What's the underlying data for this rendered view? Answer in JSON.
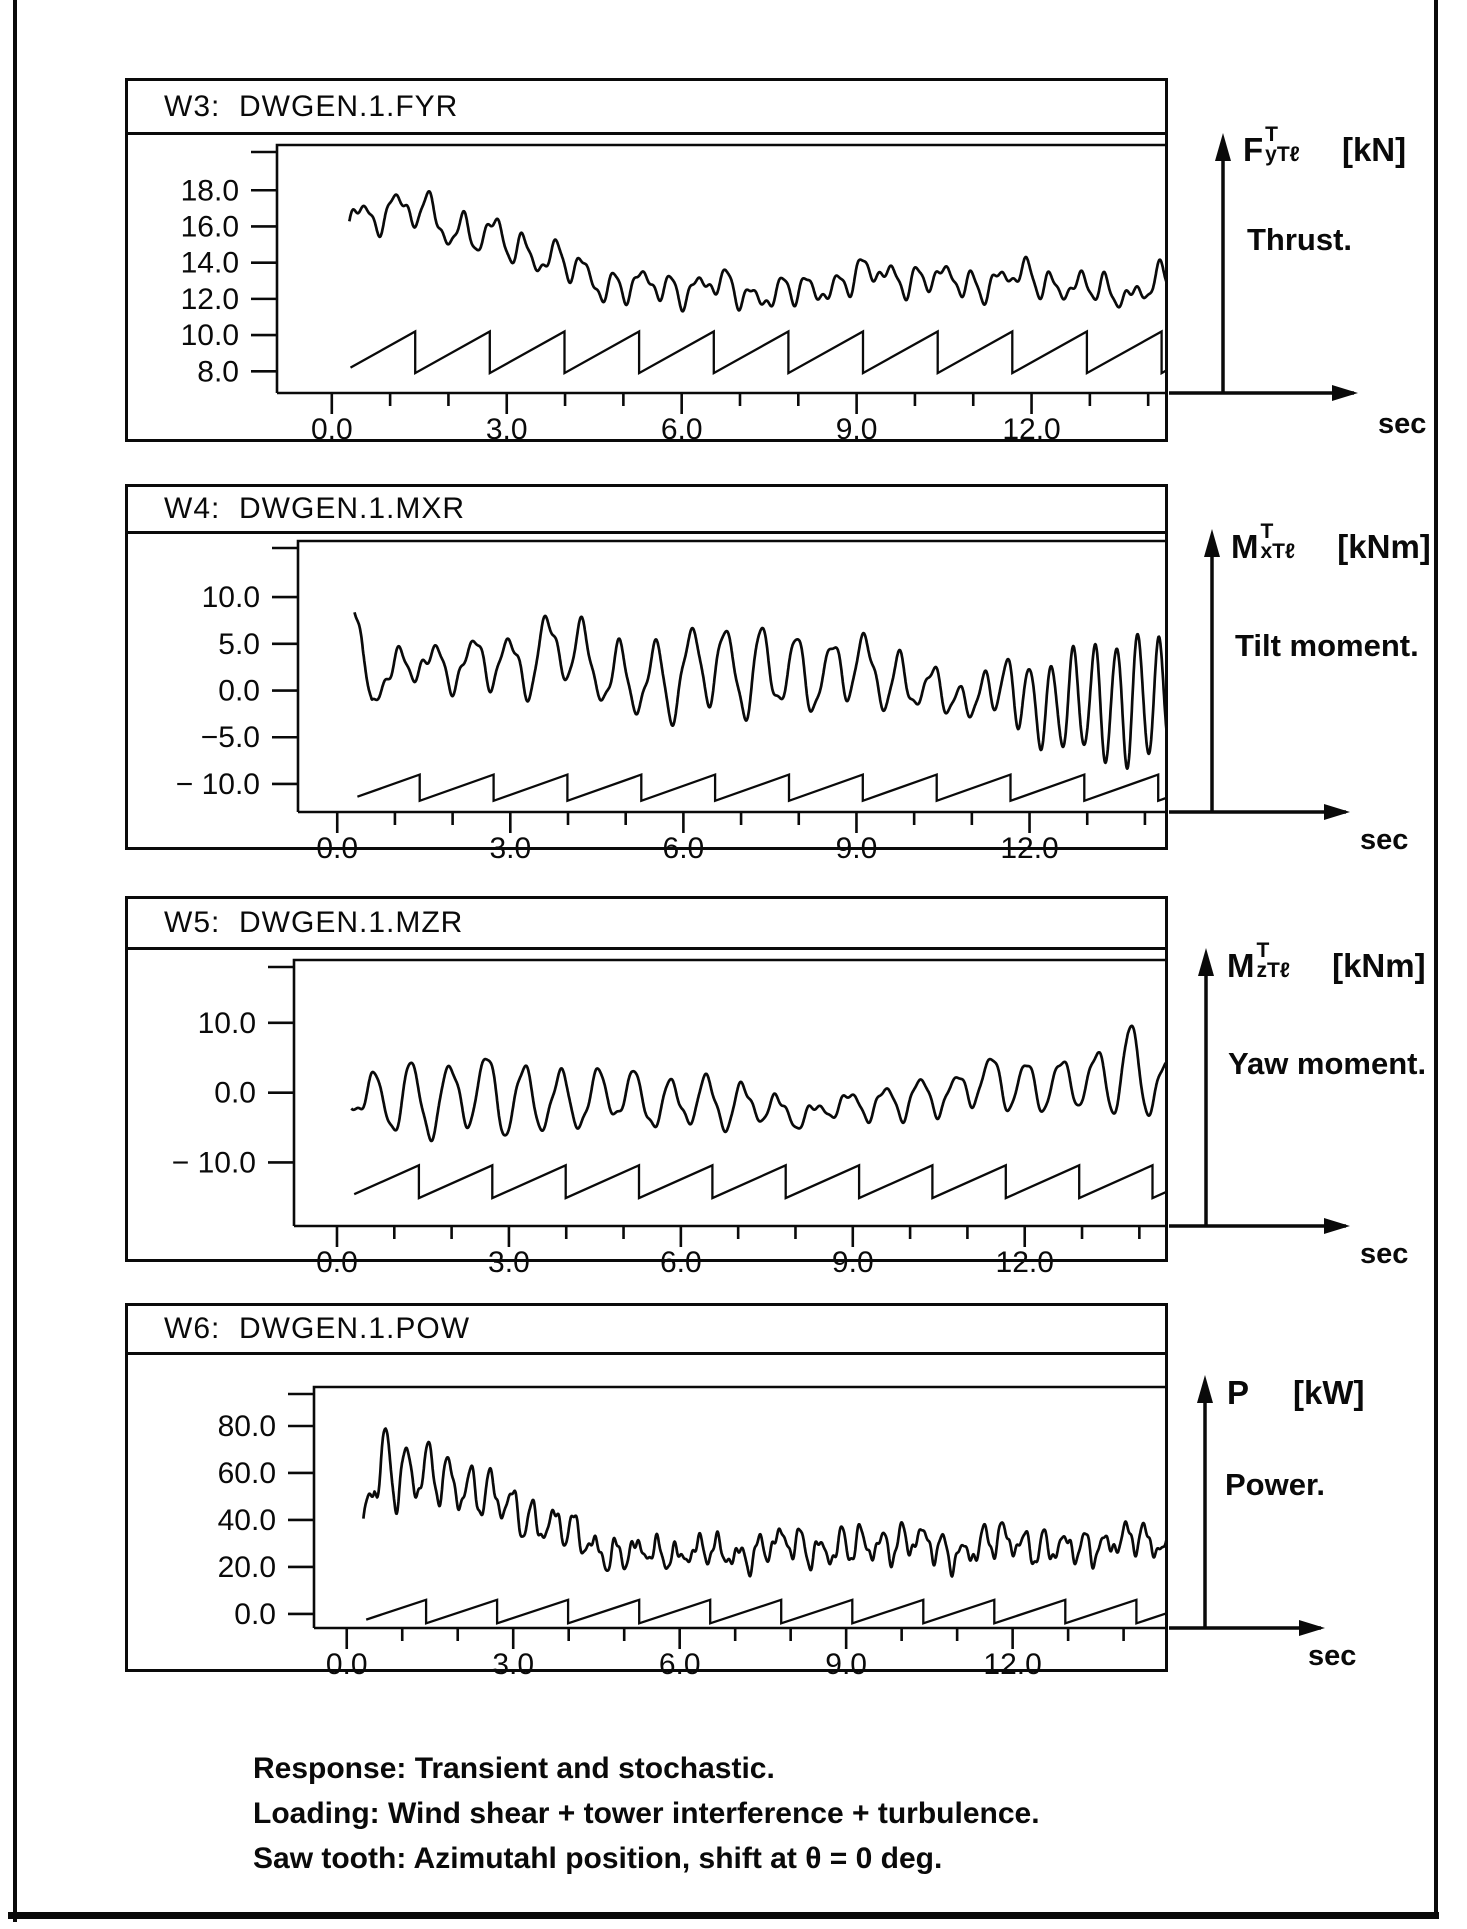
{
  "captions": {
    "lines": [
      "Response: Transient and stochastic.",
      "Loading: Wind shear + tower interference + turbulence.",
      "Saw tooth: Azimutahl position, shift at θ = 0 deg."
    ]
  },
  "chart_data": [
    {
      "id": "W3",
      "type": "line",
      "title": "W3:  DWGEN.1.FYR",
      "x_unit": "sec",
      "xlim": [
        -0.94,
        14.34
      ],
      "ylim": [
        6.8,
        20.5
      ],
      "x_major_ticks": [
        0,
        3,
        6,
        9,
        12
      ],
      "x_major_labels": [
        "0.0",
        "3.0",
        "6.0",
        "9.0",
        "12.0"
      ],
      "x_minor_step": 1,
      "y_ticks": [
        [
          18,
          "18.0"
        ],
        [
          16,
          "16.0"
        ],
        [
          14,
          "14.0"
        ],
        [
          12,
          "12.0"
        ],
        [
          10,
          "10.0"
        ],
        [
          8,
          "8.0"
        ]
      ],
      "axis_label": {
        "base": "F",
        "sup": "T",
        "sub": "yTℓ",
        "unit": "[kN]",
        "desc": "Thrust."
      },
      "sec_label": "sec",
      "signal": {
        "t_start": 0.3,
        "t_end": 14.34,
        "phase0": -0.5,
        "base": [
          [
            0.3,
            15.8
          ],
          [
            0.5,
            16.3
          ],
          [
            0.8,
            16.8
          ],
          [
            1.2,
            17.0
          ],
          [
            1.7,
            16.6
          ],
          [
            2.2,
            16.1
          ],
          [
            2.7,
            15.4
          ],
          [
            3.2,
            14.7
          ],
          [
            3.7,
            14.1
          ],
          [
            4.2,
            13.5
          ],
          [
            4.7,
            13.1
          ],
          [
            5.2,
            12.8
          ],
          [
            6,
            12.5
          ],
          [
            7,
            12.4
          ],
          [
            8,
            12.5
          ],
          [
            8.8,
            12.9
          ],
          [
            9.6,
            13.2
          ],
          [
            10.4,
            13.2
          ],
          [
            11.2,
            13.0
          ],
          [
            12,
            12.9
          ],
          [
            12.6,
            12.7
          ],
          [
            13.2,
            12.5
          ],
          [
            13.8,
            12.7
          ],
          [
            14.34,
            12.9
          ]
        ],
        "amp": [
          [
            0.3,
            0.5
          ],
          [
            0.8,
            0.8
          ],
          [
            1.5,
            0.9
          ],
          [
            2.5,
            0.9
          ],
          [
            3.5,
            0.8
          ],
          [
            4.5,
            0.75
          ],
          [
            5.5,
            0.65
          ],
          [
            7,
            0.6
          ],
          [
            9,
            0.6
          ],
          [
            11,
            0.6
          ],
          [
            12.5,
            0.65
          ],
          [
            13.5,
            0.55
          ],
          [
            14.34,
            0.6
          ]
        ],
        "freq": [
          [
            0.3,
            1.6
          ],
          [
            3,
            1.9
          ],
          [
            6,
            2.1
          ],
          [
            14.34,
            2.2
          ]
        ],
        "noise": [
          [
            0.78,
            0.5,
            0.35
          ],
          [
            3.1,
            1.2,
            0.28
          ],
          [
            5.2,
            2.8,
            0.18
          ],
          [
            0.35,
            0.2,
            0.22
          ]
        ]
      },
      "sawtooth": {
        "min": 7.9,
        "max": 10.2,
        "period": 1.28,
        "first_drop": 1.43,
        "t_start": 0.32,
        "t_end": 14.34
      }
    },
    {
      "id": "W4",
      "type": "line",
      "title": "W4:  DWGEN.1.MXR",
      "x_unit": "sec",
      "xlim": [
        -0.68,
        14.4
      ],
      "ylim": [
        -13,
        16
      ],
      "x_major_ticks": [
        0,
        3,
        6,
        9,
        12
      ],
      "x_major_labels": [
        "0.0",
        "3.0",
        "6.0",
        "9.0",
        "12.0"
      ],
      "x_minor_step": 1,
      "y_ticks": [
        [
          10,
          "10.0"
        ],
        [
          5,
          "5.0"
        ],
        [
          0,
          "0.0"
        ],
        [
          -5,
          "−5.0"
        ],
        [
          -10,
          "− 10.0"
        ]
      ],
      "axis_label": {
        "base": "M",
        "sup": "T",
        "sub": "xTℓ",
        "unit": "[kNm]",
        "desc": "Tilt moment."
      },
      "sec_label": "sec",
      "signal": {
        "t_start": 0.3,
        "t_end": 14.4,
        "phase0": 0.8,
        "base": [
          [
            0.3,
            9.3
          ],
          [
            0.45,
            4.0
          ],
          [
            0.6,
            0.8
          ],
          [
            0.9,
            2.2
          ],
          [
            1.5,
            2.4
          ],
          [
            2.2,
            2.6
          ],
          [
            3.0,
            3.5
          ],
          [
            3.8,
            4.2
          ],
          [
            4.3,
            3.2
          ],
          [
            5.0,
            0.8
          ],
          [
            5.5,
            1.5
          ],
          [
            6.0,
            2.2
          ],
          [
            6.6,
            2.0
          ],
          [
            7.2,
            2.2
          ],
          [
            7.6,
            2.4
          ],
          [
            8.2,
            2.0
          ],
          [
            9.0,
            1.8
          ],
          [
            9.6,
            1.6
          ],
          [
            10.2,
            0.5
          ],
          [
            10.8,
            -0.8
          ],
          [
            11.2,
            -0.6
          ],
          [
            11.8,
            -0.5
          ],
          [
            12.5,
            -1.0
          ],
          [
            13.2,
            -1.2
          ],
          [
            14.0,
            -1.5
          ],
          [
            14.4,
            -1.0
          ]
        ],
        "amp": [
          [
            0.3,
            0.05
          ],
          [
            0.6,
            0.8
          ],
          [
            1.0,
            1.6
          ],
          [
            2.0,
            2.0
          ],
          [
            2.6,
            2.6
          ],
          [
            3.3,
            3.2
          ],
          [
            4.0,
            3.6
          ],
          [
            4.7,
            3.0
          ],
          [
            5.2,
            3.8
          ],
          [
            6.0,
            4.2
          ],
          [
            6.6,
            4.0
          ],
          [
            7.5,
            4.6
          ],
          [
            8.0,
            3.4
          ],
          [
            9.0,
            3.2
          ],
          [
            9.7,
            3.0
          ],
          [
            10.3,
            2.0
          ],
          [
            10.8,
            1.0
          ],
          [
            11.3,
            2.5
          ],
          [
            11.8,
            4.2
          ],
          [
            12.5,
            4.8
          ],
          [
            13.2,
            5.4
          ],
          [
            13.9,
            6.4
          ],
          [
            14.4,
            5.0
          ]
        ],
        "freq": [
          [
            0.3,
            1.5
          ],
          [
            5,
            1.6
          ],
          [
            10,
            1.7
          ],
          [
            10.8,
            2.2
          ],
          [
            11.3,
            2.6
          ],
          [
            14.4,
            2.7
          ]
        ],
        "noise": [
          [
            0.78,
            1.5,
            0.7
          ],
          [
            2.9,
            0.3,
            0.6
          ],
          [
            4.7,
            2.2,
            0.45
          ],
          [
            0.42,
            3.1,
            0.5
          ]
        ]
      },
      "sawtooth": {
        "min": -11.8,
        "max": -9.0,
        "period": 1.28,
        "first_drop": 1.43,
        "t_start": 0.35,
        "t_end": 14.4
      }
    },
    {
      "id": "W5",
      "type": "line",
      "title": "W5:  DWGEN.1.MZR",
      "x_unit": "sec",
      "xlim": [
        -0.75,
        14.5
      ],
      "ylim": [
        -19.1,
        19
      ],
      "x_major_ticks": [
        0,
        3,
        6,
        9,
        12
      ],
      "x_major_labels": [
        "0.0",
        "3.0",
        "6.0",
        "9.0",
        "12.0"
      ],
      "x_minor_step": 1,
      "y_ticks": [
        [
          10,
          "10.0"
        ],
        [
          0,
          "0.0"
        ],
        [
          -10,
          "− 10.0"
        ]
      ],
      "axis_label": {
        "base": "M",
        "sup": "T",
        "sub": "zTℓ",
        "unit": "[kNm]",
        "desc": "Yaw moment."
      },
      "sec_label": "sec",
      "signal": {
        "t_start": 0.25,
        "t_end": 14.5,
        "phase0": -2.2,
        "base": [
          [
            0.25,
            -1.5
          ],
          [
            0.5,
            -1.0
          ],
          [
            1,
            -1.0
          ],
          [
            2,
            -0.5
          ],
          [
            3,
            -0.5
          ],
          [
            4,
            -1.0
          ],
          [
            5,
            -0.8
          ],
          [
            6,
            -1.0
          ],
          [
            7,
            -2.0
          ],
          [
            8,
            -2.6
          ],
          [
            9,
            -2.3
          ],
          [
            10,
            -0.8
          ],
          [
            11,
            0.8
          ],
          [
            12,
            1.2
          ],
          [
            13,
            1.8
          ],
          [
            13.8,
            2.5
          ],
          [
            14.5,
            1.0
          ]
        ],
        "amp": [
          [
            0.25,
            1.0
          ],
          [
            0.6,
            3.5
          ],
          [
            1.2,
            5.5
          ],
          [
            2.0,
            4.5
          ],
          [
            2.8,
            5.5
          ],
          [
            3.5,
            4.5
          ],
          [
            4.2,
            3.8
          ],
          [
            5.0,
            3.5
          ],
          [
            6.0,
            3.2
          ],
          [
            6.8,
            3.6
          ],
          [
            7.5,
            2.0
          ],
          [
            8.0,
            1.5
          ],
          [
            8.7,
            1.2
          ],
          [
            9.3,
            2.0
          ],
          [
            10.0,
            2.8
          ],
          [
            10.7,
            2.2
          ],
          [
            11.3,
            3.2
          ],
          [
            12.0,
            3.8
          ],
          [
            12.7,
            3.0
          ],
          [
            13.3,
            4.0
          ],
          [
            13.8,
            7.0
          ],
          [
            14.1,
            5.0
          ],
          [
            14.5,
            4.0
          ]
        ],
        "freq": [
          [
            0.25,
            1.5
          ],
          [
            7,
            1.6
          ],
          [
            14.5,
            1.65
          ]
        ],
        "noise": [
          [
            0.78,
            2.5,
            0.45
          ],
          [
            3.3,
            1.1,
            0.45
          ],
          [
            0.45,
            0.8,
            0.5
          ],
          [
            5.1,
            2.0,
            0.3
          ]
        ]
      },
      "sawtooth": {
        "min": -15.1,
        "max": -10.4,
        "period": 1.28,
        "first_drop": 1.43,
        "t_start": 0.3,
        "t_end": 14.5
      }
    },
    {
      "id": "W6",
      "type": "line",
      "title": "W6:  DWGEN.1.POW",
      "x_unit": "sec",
      "xlim": [
        -0.59,
        14.8
      ],
      "ylim": [
        -6,
        96.6
      ],
      "x_major_ticks": [
        0,
        3,
        6,
        9,
        12
      ],
      "x_major_labels": [
        "0.0",
        "3.0",
        "6.0",
        "9.0",
        "12.0"
      ],
      "x_minor_step": 1,
      "y_ticks": [
        [
          80,
          "80.0"
        ],
        [
          60,
          "60.0"
        ],
        [
          40,
          "40.0"
        ],
        [
          20,
          "20.0"
        ],
        [
          0,
          "0.0"
        ]
      ],
      "axis_label": {
        "base": "P",
        "sup": "",
        "sub": "",
        "unit": "[kW]",
        "desc": "Power."
      },
      "sec_label": "sec",
      "signal": {
        "t_start": 0.3,
        "t_end": 14.8,
        "phase0": 1.2,
        "base": [
          [
            0.3,
            36
          ],
          [
            0.5,
            64
          ],
          [
            0.7,
            66
          ],
          [
            1.1,
            60
          ],
          [
            1.6,
            58
          ],
          [
            2.1,
            54
          ],
          [
            2.6,
            50
          ],
          [
            3.1,
            45
          ],
          [
            3.6,
            38
          ],
          [
            4.1,
            32
          ],
          [
            4.6,
            28
          ],
          [
            5.2,
            26
          ],
          [
            6,
            25
          ],
          [
            7,
            27
          ],
          [
            8,
            28
          ],
          [
            9,
            29
          ],
          [
            10,
            30
          ],
          [
            10.8,
            28
          ],
          [
            11.5,
            29
          ],
          [
            12.2,
            30
          ],
          [
            13,
            28
          ],
          [
            13.6,
            30
          ],
          [
            14.8,
            30
          ]
        ],
        "amp": [
          [
            0.3,
            2
          ],
          [
            0.55,
            18
          ],
          [
            0.8,
            14
          ],
          [
            1.2,
            12
          ],
          [
            1.8,
            10
          ],
          [
            2.4,
            9
          ],
          [
            3.0,
            8
          ],
          [
            3.6,
            7
          ],
          [
            4.2,
            6
          ],
          [
            5,
            5
          ],
          [
            6,
            4
          ],
          [
            7,
            5
          ],
          [
            8,
            5.5
          ],
          [
            9,
            6.5
          ],
          [
            10,
            6
          ],
          [
            11,
            5.5
          ],
          [
            12,
            6
          ],
          [
            13,
            5.5
          ],
          [
            14,
            5
          ],
          [
            14.8,
            5
          ]
        ],
        "freq": [
          [
            0.3,
            2.6
          ],
          [
            5,
            2.7
          ],
          [
            14.8,
            2.75
          ]
        ],
        "noise": [
          [
            0.78,
            0.9,
            2.2
          ],
          [
            3.9,
            2.1,
            2.0
          ],
          [
            6.3,
            0.4,
            1.4
          ],
          [
            0.5,
            1.7,
            1.4
          ],
          [
            9.1,
            3.0,
            0.9
          ]
        ]
      },
      "sawtooth": {
        "min": -4,
        "max": 6,
        "period": 1.28,
        "first_drop": 1.43,
        "t_start": 0.35,
        "t_end": 14.8
      }
    }
  ]
}
